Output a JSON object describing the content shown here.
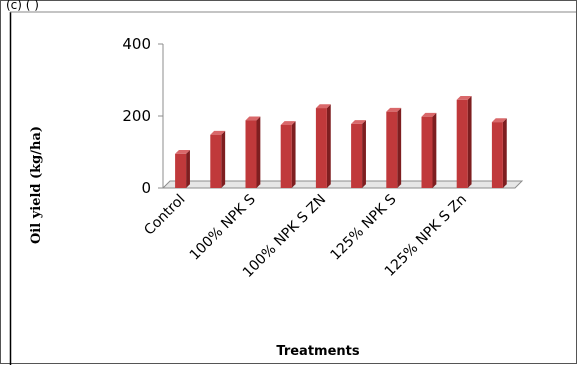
{
  "header_fragment": "(c)     (   )",
  "chart_data": {
    "type": "bar",
    "title": "",
    "xlabel": "Treatments",
    "ylabel": "Oil yield (kg/ha)",
    "ylim": [
      0,
      400
    ],
    "yticks": [
      0,
      200,
      400
    ],
    "categories": [
      "Control",
      "100% NPK S",
      "100% NPK S ZN",
      "125% NPK S",
      "125% NPK S Zn"
    ],
    "bar_values": [
      95,
      148,
      188,
      175,
      222,
      178,
      212,
      198,
      245,
      183
    ],
    "colors": {
      "bar_front": "#c0393b",
      "bar_side": "#7e1e20",
      "bar_top": "#d9686a",
      "floor": "#e6e6e6",
      "axis": "#8c8c8c"
    },
    "legend": "none",
    "grid": false
  }
}
